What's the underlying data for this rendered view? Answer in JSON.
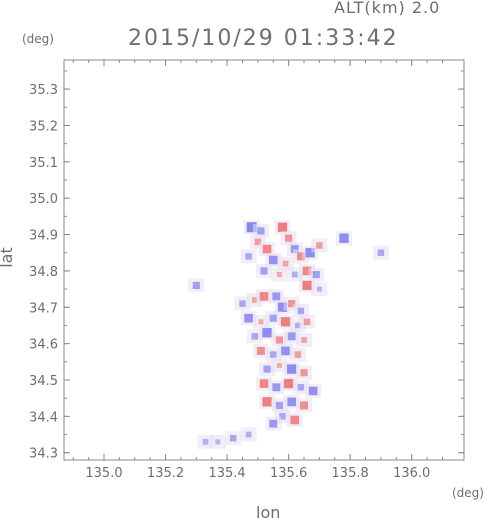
{
  "header": {
    "altitude_label": "ALT(km) 2.0",
    "timestamp": "2015/10/29 01:33:42"
  },
  "axes": {
    "y_unit": "(deg)",
    "x_unit": "(deg)",
    "y_label": "lat",
    "x_label": "lon"
  },
  "chart_data": {
    "type": "heatmap",
    "title": "2015/10/29 01:33:42",
    "xlabel": "lon",
    "ylabel": "lat",
    "xlim": [
      134.87,
      136.17
    ],
    "ylim": [
      34.28,
      35.38
    ],
    "xticks": [
      135.0,
      135.2,
      135.4,
      135.6,
      135.8,
      136.0
    ],
    "xtick_labels": [
      "135.0",
      "135.2",
      "135.4",
      "135.6",
      "135.8",
      "136.0"
    ],
    "yticks": [
      34.3,
      34.4,
      34.5,
      34.6,
      34.7,
      34.8,
      34.9,
      35.0,
      35.1,
      35.2,
      35.3
    ],
    "ytick_labels": [
      "34.3",
      "34.4",
      "34.5",
      "34.6",
      "34.7",
      "34.8",
      "34.9",
      "35.0",
      "35.1",
      "35.2",
      "35.3"
    ],
    "grid": false,
    "colors": {
      "positive": "#f07070",
      "negative": "#8080f0",
      "neutral": "#e8e0f0"
    },
    "cells": [
      {
        "lon": 135.48,
        "lat": 34.92,
        "v": -1
      },
      {
        "lon": 135.51,
        "lat": 34.91,
        "v": -0.6
      },
      {
        "lon": 135.5,
        "lat": 34.88,
        "v": 0.5
      },
      {
        "lon": 135.53,
        "lat": 34.86,
        "v": 0.8
      },
      {
        "lon": 135.58,
        "lat": 34.92,
        "v": 0.9
      },
      {
        "lon": 135.6,
        "lat": 34.89,
        "v": 0.6
      },
      {
        "lon": 135.62,
        "lat": 34.86,
        "v": -0.7
      },
      {
        "lon": 135.47,
        "lat": 34.84,
        "v": -0.5
      },
      {
        "lon": 135.55,
        "lat": 34.83,
        "v": -0.8
      },
      {
        "lon": 135.59,
        "lat": 34.82,
        "v": 0.4
      },
      {
        "lon": 135.64,
        "lat": 34.84,
        "v": 0.7
      },
      {
        "lon": 135.67,
        "lat": 34.85,
        "v": -0.9
      },
      {
        "lon": 135.7,
        "lat": 34.87,
        "v": 0.5
      },
      {
        "lon": 135.52,
        "lat": 34.8,
        "v": -0.6
      },
      {
        "lon": 135.57,
        "lat": 34.79,
        "v": 0.3
      },
      {
        "lon": 135.62,
        "lat": 34.79,
        "v": -0.4
      },
      {
        "lon": 135.66,
        "lat": 34.8,
        "v": 0.8
      },
      {
        "lon": 135.69,
        "lat": 34.79,
        "v": -0.6
      },
      {
        "lon": 135.66,
        "lat": 34.76,
        "v": 0.9
      },
      {
        "lon": 135.7,
        "lat": 34.75,
        "v": -0.3
      },
      {
        "lon": 135.78,
        "lat": 34.89,
        "v": -0.9
      },
      {
        "lon": 135.9,
        "lat": 34.85,
        "v": -0.5
      },
      {
        "lon": 135.3,
        "lat": 34.76,
        "v": -0.6
      },
      {
        "lon": 135.45,
        "lat": 34.71,
        "v": -0.5
      },
      {
        "lon": 135.49,
        "lat": 34.72,
        "v": 0.4
      },
      {
        "lon": 135.52,
        "lat": 34.73,
        "v": 0.8
      },
      {
        "lon": 135.56,
        "lat": 34.73,
        "v": -0.7
      },
      {
        "lon": 135.58,
        "lat": 34.7,
        "v": -0.9
      },
      {
        "lon": 135.61,
        "lat": 34.71,
        "v": 0.6
      },
      {
        "lon": 135.64,
        "lat": 34.69,
        "v": -0.5
      },
      {
        "lon": 135.47,
        "lat": 34.67,
        "v": -0.8
      },
      {
        "lon": 135.51,
        "lat": 34.66,
        "v": 0.3
      },
      {
        "lon": 135.55,
        "lat": 34.67,
        "v": -0.6
      },
      {
        "lon": 135.59,
        "lat": 34.66,
        "v": 0.9
      },
      {
        "lon": 135.63,
        "lat": 34.65,
        "v": -0.4
      },
      {
        "lon": 135.66,
        "lat": 34.66,
        "v": 0.5
      },
      {
        "lon": 135.49,
        "lat": 34.62,
        "v": -0.5
      },
      {
        "lon": 135.53,
        "lat": 34.63,
        "v": -0.9
      },
      {
        "lon": 135.57,
        "lat": 34.61,
        "v": 0.6
      },
      {
        "lon": 135.61,
        "lat": 34.62,
        "v": -0.7
      },
      {
        "lon": 135.65,
        "lat": 34.61,
        "v": 0.4
      },
      {
        "lon": 135.51,
        "lat": 34.58,
        "v": 0.7
      },
      {
        "lon": 135.55,
        "lat": 34.57,
        "v": -0.5
      },
      {
        "lon": 135.59,
        "lat": 34.58,
        "v": -0.8
      },
      {
        "lon": 135.63,
        "lat": 34.57,
        "v": 0.5
      },
      {
        "lon": 135.53,
        "lat": 34.53,
        "v": -0.6
      },
      {
        "lon": 135.57,
        "lat": 34.54,
        "v": 0.3
      },
      {
        "lon": 135.61,
        "lat": 34.53,
        "v": -0.9
      },
      {
        "lon": 135.65,
        "lat": 34.52,
        "v": 0.6
      },
      {
        "lon": 135.52,
        "lat": 34.49,
        "v": 0.8
      },
      {
        "lon": 135.56,
        "lat": 34.48,
        "v": -0.7
      },
      {
        "lon": 135.6,
        "lat": 34.49,
        "v": 0.9
      },
      {
        "lon": 135.64,
        "lat": 34.48,
        "v": -0.5
      },
      {
        "lon": 135.68,
        "lat": 34.47,
        "v": -0.8
      },
      {
        "lon": 135.53,
        "lat": 34.44,
        "v": 0.9
      },
      {
        "lon": 135.57,
        "lat": 34.43,
        "v": -0.6
      },
      {
        "lon": 135.61,
        "lat": 34.44,
        "v": -0.8
      },
      {
        "lon": 135.65,
        "lat": 34.43,
        "v": 0.7
      },
      {
        "lon": 135.58,
        "lat": 34.4,
        "v": -0.5
      },
      {
        "lon": 135.62,
        "lat": 34.39,
        "v": 0.8
      },
      {
        "lon": 135.55,
        "lat": 34.38,
        "v": -0.7
      },
      {
        "lon": 135.47,
        "lat": 34.35,
        "v": -0.4
      },
      {
        "lon": 135.42,
        "lat": 34.34,
        "v": -0.5
      },
      {
        "lon": 135.37,
        "lat": 34.33,
        "v": -0.3
      },
      {
        "lon": 135.33,
        "lat": 34.33,
        "v": -0.4
      }
    ]
  }
}
